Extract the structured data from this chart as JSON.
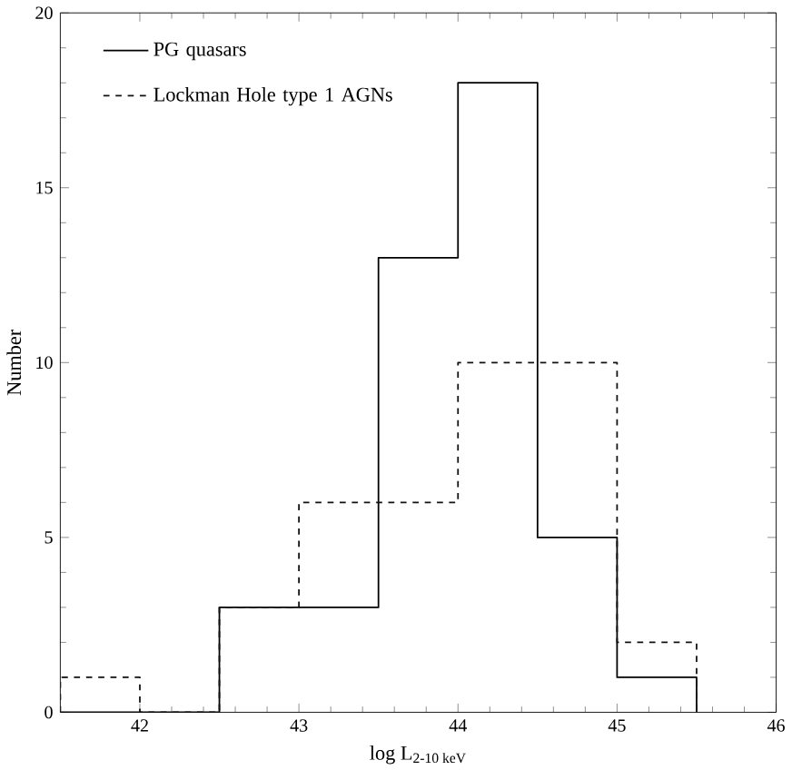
{
  "chart_data": {
    "type": "histogram",
    "xlabel": "log L$_{2-10 keV}$",
    "ylabel": "Number",
    "bins": [
      41.5,
      42,
      42.5,
      43,
      43.5,
      44,
      44.5,
      45,
      45.5
    ],
    "series": [
      {
        "name": "PG quasars",
        "color": "#000000",
        "line_style": "solid",
        "values": [
          0,
          0,
          3,
          3,
          13,
          18,
          5,
          1
        ]
      },
      {
        "name": "Lockman Hole type 1 AGNs",
        "color": "#111111",
        "line_style": "dashed",
        "values": [
          1,
          0,
          3,
          6,
          6,
          10,
          10,
          2
        ]
      }
    ],
    "xlim": [
      41.5,
      46
    ],
    "ylim": [
      0,
      20
    ],
    "xticks": [
      42,
      43,
      44,
      45,
      46
    ],
    "yticks": [
      0,
      5,
      10,
      15,
      20
    ],
    "legend": "top left",
    "grid": false
  }
}
